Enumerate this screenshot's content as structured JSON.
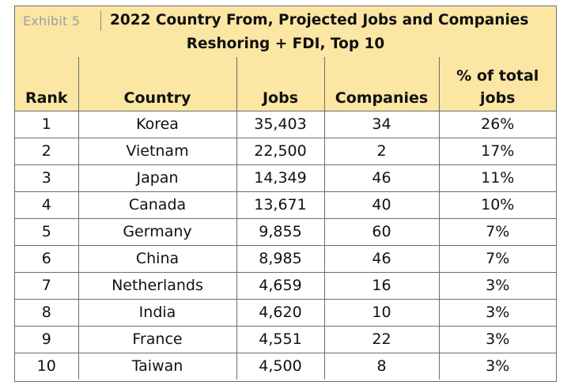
{
  "exhibit_label": "Exhibit 5",
  "title_line1": "2022 Country From, Projected Jobs and Companies",
  "title_line2": "Reshoring + FDI, Top 10",
  "header": {
    "rank": "Rank",
    "country": "Country",
    "jobs": "Jobs",
    "companies": "Companies",
    "pct_line1": "% of total",
    "pct_line2": "jobs"
  },
  "colors": {
    "header_fill": "#fbe6a3",
    "border": "#6e6e6e",
    "exhibit_text": "#9aa0a6"
  },
  "chart_data": {
    "type": "table",
    "title": "2022 Country From, Projected Jobs and Companies Reshoring + FDI, Top 10",
    "columns": [
      "Rank",
      "Country",
      "Jobs",
      "Companies",
      "% of total jobs"
    ],
    "rows": [
      {
        "rank": "1",
        "country": "Korea",
        "jobs": "35,403",
        "companies": "34",
        "pct": "26%"
      },
      {
        "rank": "2",
        "country": "Vietnam",
        "jobs": "22,500",
        "companies": "2",
        "pct": "17%"
      },
      {
        "rank": "3",
        "country": "Japan",
        "jobs": "14,349",
        "companies": "46",
        "pct": "11%"
      },
      {
        "rank": "4",
        "country": "Canada",
        "jobs": "13,671",
        "companies": "40",
        "pct": "10%"
      },
      {
        "rank": "5",
        "country": "Germany",
        "jobs": "9,855",
        "companies": "60",
        "pct": "7%"
      },
      {
        "rank": "6",
        "country": "China",
        "jobs": "8,985",
        "companies": "46",
        "pct": "7%"
      },
      {
        "rank": "7",
        "country": "Netherlands",
        "jobs": "4,659",
        "companies": "16",
        "pct": "3%"
      },
      {
        "rank": "8",
        "country": "India",
        "jobs": "4,620",
        "companies": "10",
        "pct": "3%"
      },
      {
        "rank": "9",
        "country": "France",
        "jobs": "4,551",
        "companies": "22",
        "pct": "3%"
      },
      {
        "rank": "10",
        "country": "Taiwan",
        "jobs": "4,500",
        "companies": "8",
        "pct": "3%"
      }
    ]
  }
}
